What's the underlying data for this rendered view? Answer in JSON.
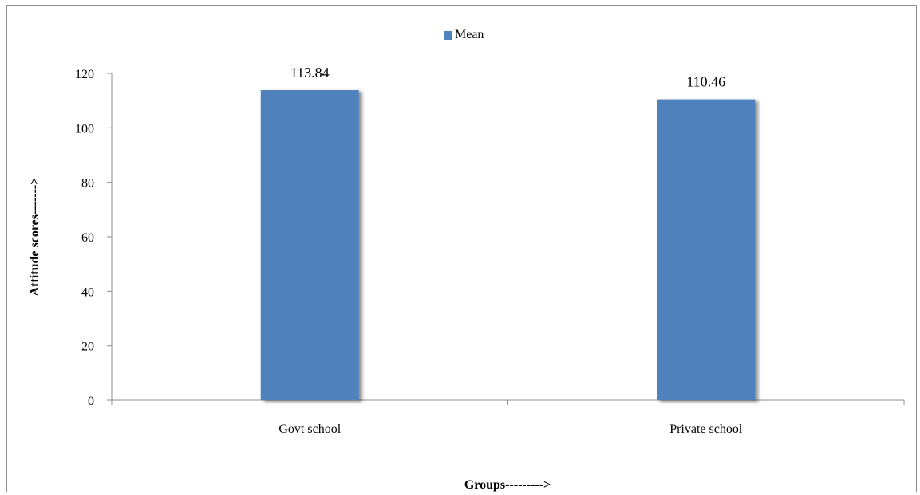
{
  "chart_data": {
    "type": "bar",
    "categories": [
      "Govt school",
      "Private school"
    ],
    "series": [
      {
        "name": "Mean",
        "values": [
          113.84,
          110.46
        ],
        "color": "#4f81bd"
      }
    ],
    "data_labels": [
      "113.84",
      "110.46"
    ],
    "xlabel": "Groups--------->",
    "ylabel": "Attitude scores------->",
    "ylim": [
      0,
      120
    ],
    "yticks": [
      0,
      20,
      40,
      60,
      80,
      100,
      120
    ],
    "grid": false,
    "legend_position": "top-center"
  }
}
